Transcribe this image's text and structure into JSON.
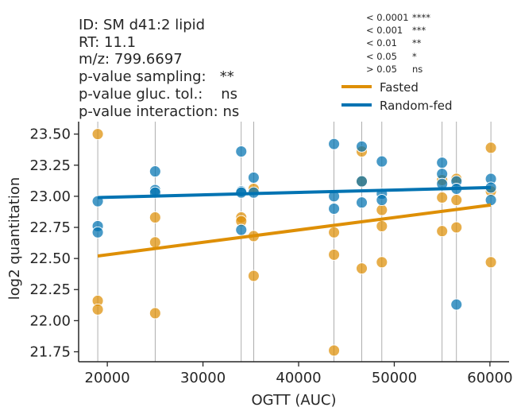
{
  "header": {
    "lines": [
      "ID: SM d41:2 lipid",
      "RT: 11.1",
      "m/z: 799.6697",
      "p-value sampling:   **",
      "p-value gluc. tol.:    ns",
      "p-value interaction: ns"
    ]
  },
  "significance_key": [
    {
      "threshold": "< 0.0001",
      "symbol": "****"
    },
    {
      "threshold": "< 0.001",
      "symbol": "***"
    },
    {
      "threshold": "< 0.01",
      "symbol": "**"
    },
    {
      "threshold": "< 0.05",
      "symbol": "*"
    },
    {
      "threshold": "> 0.05",
      "symbol": "ns"
    }
  ],
  "colors": {
    "fasted": "#de8f05",
    "random_fed": "#0173b2",
    "axis": "#262626",
    "vline": "#9a9a9a"
  },
  "chart_data": {
    "type": "scatter",
    "xlabel": "OGTT (AUC)",
    "ylabel": "log2 quantitation",
    "xlim": [
      17000,
      62000
    ],
    "ylim": [
      21.67,
      23.6
    ],
    "xticks": [
      20000,
      30000,
      40000,
      50000,
      60000
    ],
    "yticks": [
      21.75,
      22.0,
      22.25,
      22.5,
      22.75,
      23.0,
      23.25,
      23.5
    ],
    "xtick_labels": [
      "20000",
      "30000",
      "40000",
      "50000",
      "60000"
    ],
    "ytick_labels": [
      "21.75",
      "22.00",
      "22.25",
      "22.50",
      "22.75",
      "23.00",
      "23.25",
      "23.50"
    ],
    "vlines": [
      19000,
      25000,
      34000,
      35300,
      43700,
      46600,
      48700,
      55000,
      56500,
      60100
    ],
    "legend_position": "top-right",
    "series": [
      {
        "name": "Fasted",
        "color": "#de8f05",
        "points": [
          [
            19000,
            23.5
          ],
          [
            19000,
            22.16
          ],
          [
            19000,
            22.09
          ],
          [
            25000,
            22.83
          ],
          [
            25000,
            22.63
          ],
          [
            25000,
            22.06
          ],
          [
            34000,
            22.83
          ],
          [
            34000,
            22.8
          ],
          [
            35300,
            23.06
          ],
          [
            35300,
            22.68
          ],
          [
            35300,
            22.36
          ],
          [
            43700,
            22.71
          ],
          [
            43700,
            22.53
          ],
          [
            43700,
            21.76
          ],
          [
            46600,
            23.36
          ],
          [
            46600,
            23.12
          ],
          [
            46600,
            22.42
          ],
          [
            48700,
            22.89
          ],
          [
            48700,
            22.76
          ],
          [
            48700,
            22.47
          ],
          [
            55000,
            23.13
          ],
          [
            55000,
            22.99
          ],
          [
            55000,
            22.72
          ],
          [
            56500,
            23.14
          ],
          [
            56500,
            22.97
          ],
          [
            56500,
            22.75
          ],
          [
            60100,
            23.39
          ],
          [
            60100,
            23.04
          ],
          [
            60100,
            22.47
          ]
        ],
        "fit": [
          [
            19000,
            22.52
          ],
          [
            60100,
            22.93
          ]
        ]
      },
      {
        "name": "Random-fed",
        "color": "#0173b2",
        "points": [
          [
            19000,
            22.96
          ],
          [
            19000,
            22.76
          ],
          [
            19000,
            22.71
          ],
          [
            25000,
            23.2
          ],
          [
            25000,
            23.05
          ],
          [
            25000,
            23.03
          ],
          [
            34000,
            23.36
          ],
          [
            34000,
            23.04
          ],
          [
            34000,
            23.03
          ],
          [
            34000,
            22.73
          ],
          [
            35300,
            23.15
          ],
          [
            35300,
            23.03
          ],
          [
            43700,
            23.42
          ],
          [
            43700,
            23.0
          ],
          [
            43700,
            22.9
          ],
          [
            46600,
            23.4
          ],
          [
            46600,
            23.12
          ],
          [
            46600,
            22.95
          ],
          [
            48700,
            23.28
          ],
          [
            48700,
            23.02
          ],
          [
            48700,
            22.97
          ],
          [
            55000,
            23.27
          ],
          [
            55000,
            23.18
          ],
          [
            55000,
            23.1
          ],
          [
            56500,
            23.12
          ],
          [
            56500,
            23.06
          ],
          [
            56500,
            22.13
          ],
          [
            60100,
            23.14
          ],
          [
            60100,
            23.07
          ],
          [
            60100,
            22.97
          ]
        ],
        "fit": [
          [
            19000,
            22.99
          ],
          [
            60100,
            23.07
          ]
        ]
      }
    ]
  }
}
